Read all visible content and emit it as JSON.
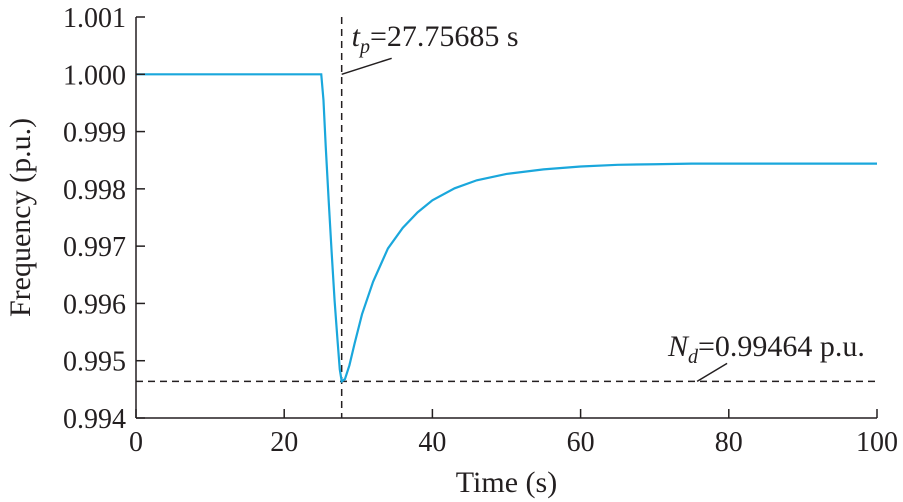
{
  "chart_data": {
    "type": "line",
    "title": "",
    "xlabel": "Time (s)",
    "ylabel": "Frequency (p.u.)",
    "xlim": [
      0,
      100
    ],
    "ylim": [
      0.994,
      1.001
    ],
    "xticks": [
      0,
      20,
      40,
      60,
      80,
      100
    ],
    "xtick_labels": [
      "0",
      "20",
      "40",
      "60",
      "80",
      "100"
    ],
    "yticks": [
      0.994,
      0.995,
      0.996,
      0.997,
      0.998,
      0.999,
      1.0,
      1.001
    ],
    "ytick_labels": [
      "0.994",
      "0.995",
      "0.996",
      "0.997",
      "0.998",
      "0.999",
      "1.000",
      "1.001"
    ],
    "grid": false,
    "colors": {
      "series": "#1aa7dc",
      "axis": "#231f20",
      "reference": "#231f20"
    },
    "series": [
      {
        "x": [
          0,
          5,
          10,
          15,
          20,
          25,
          25.3,
          25.6,
          26.0,
          26.4,
          26.8,
          27.2,
          27.5,
          27.76,
          28.2,
          28.8,
          29.5,
          30.5,
          32,
          34,
          36,
          38,
          40,
          43,
          46,
          50,
          55,
          60,
          65,
          70,
          75,
          80,
          85,
          90,
          95,
          100
        ],
        "y": [
          1.0,
          1.0,
          1.0,
          1.0,
          1.0,
          1.0,
          0.99955,
          0.99875,
          0.9978,
          0.9969,
          0.99605,
          0.99535,
          0.99485,
          0.99464,
          0.99468,
          0.99492,
          0.9953,
          0.99581,
          0.99638,
          0.99696,
          0.99732,
          0.99759,
          0.9978,
          0.99801,
          0.99815,
          0.99826,
          0.99834,
          0.99839,
          0.99842,
          0.99843,
          0.99844,
          0.99844,
          0.99844,
          0.99844,
          0.99844,
          0.99844
        ]
      }
    ],
    "reference_lines": {
      "vertical_x": 27.75685,
      "horizontal_y": 0.99464
    },
    "annotations": {
      "tp_symbol": "t",
      "tp_subscript": "p",
      "tp_value": "=27.75685 s",
      "nd_symbol": "N",
      "nd_subscript": "d",
      "nd_value": "=0.99464 p.u."
    }
  }
}
